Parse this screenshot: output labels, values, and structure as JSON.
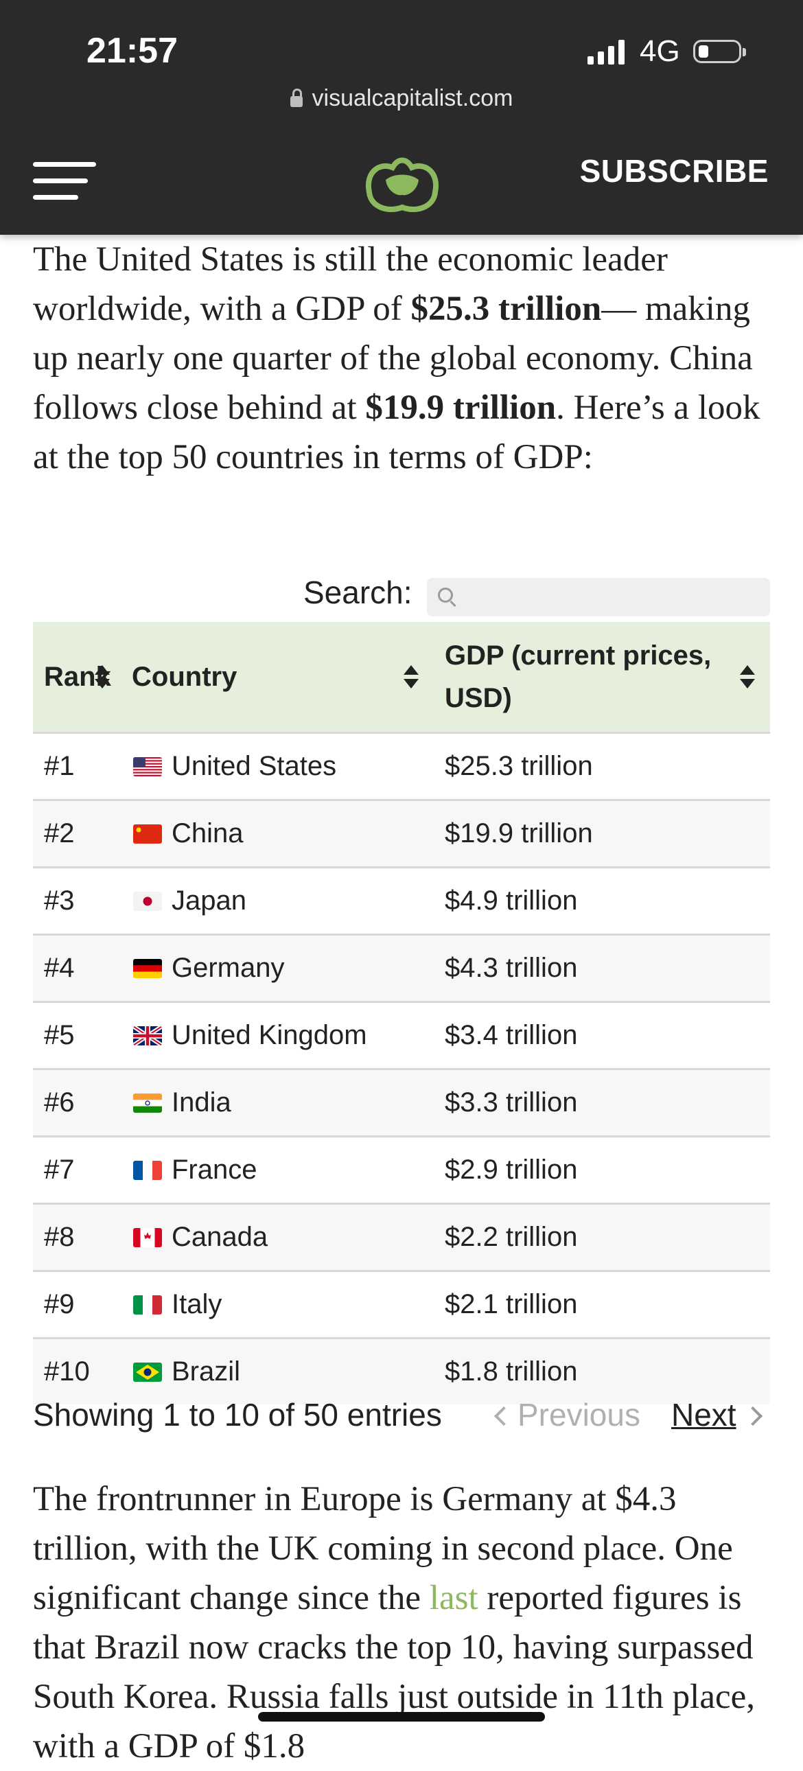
{
  "status_bar": {
    "time": "21:57",
    "network": "4G"
  },
  "browser": {
    "url": "visualcapitalist.com"
  },
  "site_header": {
    "subscribe_label": "SUBSCRIBE"
  },
  "article": {
    "intro_parts": [
      "The United States is still the economic leader worldwide, with a GDP of ",
      "$25.3 trillion",
      "— making up nearly one quarter of the global economy. China follows close behind at ",
      "$19.9 trillion",
      ". Here’s a look at the top 50 countries in terms of GDP:"
    ],
    "outro_parts": [
      "The frontrunner in Europe is Germany at $4.3 trillion, with the UK coming in second place. One significant change since the ",
      "last",
      " reported figures is that Brazil now cracks the top 10, having surpassed South Korea. Russia falls just outside in 11th place, with a GDP of $1.8"
    ]
  },
  "table": {
    "search_label": "Search:",
    "search_value": "",
    "headers": {
      "rank": "Rank",
      "country": "Country",
      "gdp": "GDP (current prices, USD)"
    },
    "rows": [
      {
        "rank": "#1",
        "country": "United States",
        "gdp": "$25.3 trillion",
        "flag": "us-flag"
      },
      {
        "rank": "#2",
        "country": "China",
        "gdp": "$19.9 trillion",
        "flag": "china-flag"
      },
      {
        "rank": "#3",
        "country": "Japan",
        "gdp": "$4.9 trillion",
        "flag": "japan-flag"
      },
      {
        "rank": "#4",
        "country": "Germany",
        "gdp": "$4.3 trillion",
        "flag": "germany-flag"
      },
      {
        "rank": "#5",
        "country": "United Kingdom",
        "gdp": "$3.4 trillion",
        "flag": "uk-flag"
      },
      {
        "rank": "#6",
        "country": "India",
        "gdp": "$3.3 trillion",
        "flag": "india-flag"
      },
      {
        "rank": "#7",
        "country": "France",
        "gdp": "$2.9 trillion",
        "flag": "france-flag"
      },
      {
        "rank": "#8",
        "country": "Canada",
        "gdp": "$2.2 trillion",
        "flag": "canada-flag"
      },
      {
        "rank": "#9",
        "country": "Italy",
        "gdp": "$2.1 trillion",
        "flag": "italy-flag"
      },
      {
        "rank": "#10",
        "country": "Brazil",
        "gdp": "$1.8 trillion",
        "flag": "brazil-flag"
      }
    ],
    "pagination": {
      "info": "Showing 1 to 10 of 50 entries",
      "previous": "Previous",
      "next": "Next"
    }
  },
  "colors": {
    "header_bg": "#2a2a2a",
    "table_header_bg": "#e5efdb",
    "accent_green": "#8cb85e"
  }
}
